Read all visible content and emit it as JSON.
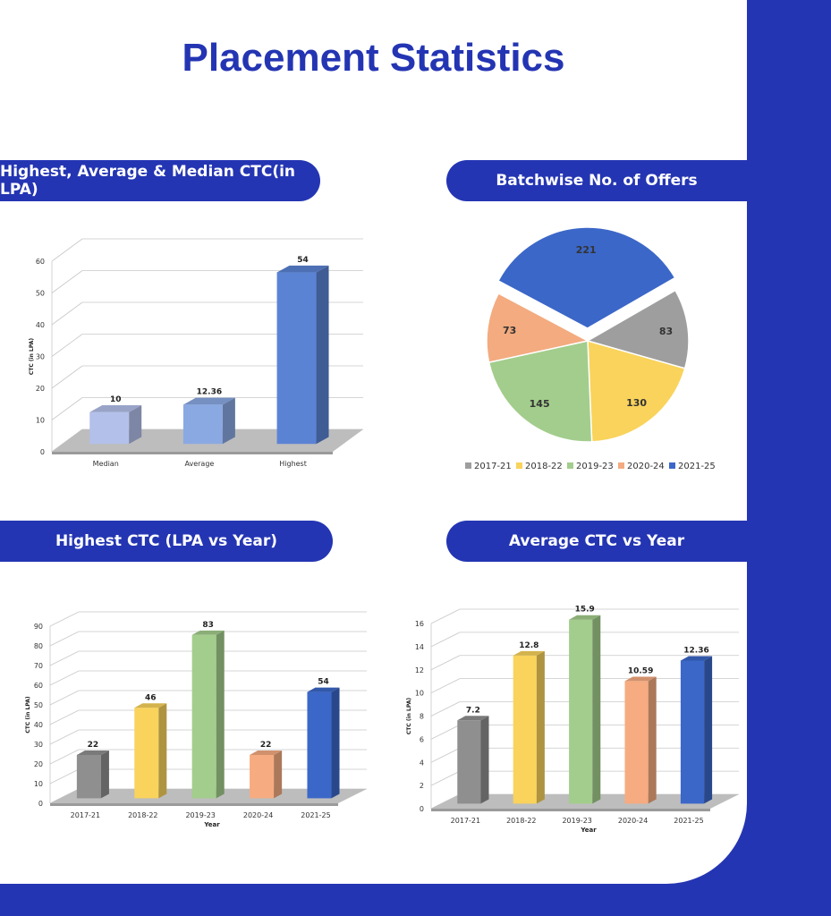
{
  "page": {
    "title": "Placement Statistics"
  },
  "sections": {
    "ctc_summary": "Highest, Average & Median CTC(in LPA)",
    "offers": "Batchwise No. of Offers",
    "highest_ctc": "Highest CTC (LPA vs Year)",
    "average_ctc": "Average CTC vs Year"
  },
  "colors": {
    "brand": "#2435b3",
    "grey": "#8f8f8f",
    "yellow": "#f9d35b",
    "green": "#a3cd8c",
    "orange": "#f3a97e",
    "blue": "#3b67c8"
  },
  "chart_data": [
    {
      "type": "bar",
      "title": "",
      "categories": [
        "Median",
        "Average",
        "Highest"
      ],
      "values": [
        10,
        12.36,
        54
      ],
      "value_labels": [
        "10",
        "12.36",
        "54"
      ],
      "ylabel": "CTC (in LPA)",
      "xlabel": "",
      "ylim": [
        0,
        60
      ],
      "yticks": [
        0,
        10,
        20,
        30,
        40,
        50,
        60
      ],
      "colors": [
        "#b3c0ea",
        "#8aa9e3",
        "#5b83d4"
      ],
      "grid": true,
      "style": "3d"
    },
    {
      "type": "pie",
      "title": "",
      "labels": [
        "2017-21",
        "2018-22",
        "2019-23",
        "2020-24",
        "2021-25"
      ],
      "values": [
        83,
        130,
        145,
        73,
        221
      ],
      "value_labels": [
        "83",
        "130",
        "145",
        "73",
        "221"
      ],
      "colors": [
        "#9e9e9e",
        "#f9d35b",
        "#a3cd8c",
        "#f3ab7f",
        "#3b67c8"
      ],
      "exploded": "2021-25",
      "legend": "bottom"
    },
    {
      "type": "bar",
      "title": "",
      "categories": [
        "2017-21",
        "2018-22",
        "2019-23",
        "2020-24",
        "2021-25"
      ],
      "values": [
        22,
        46,
        83,
        22,
        54
      ],
      "value_labels": [
        "22",
        "46",
        "83",
        "22",
        "54"
      ],
      "xlabel": "Year",
      "ylabel": "CTC (in LPA)",
      "ylim": [
        0,
        90
      ],
      "yticks": [
        0,
        10,
        20,
        30,
        40,
        50,
        60,
        70,
        80,
        90
      ],
      "colors": [
        "#8f8f8f",
        "#f9d35b",
        "#a3cd8c",
        "#f6ab80",
        "#3b67c8"
      ],
      "grid": true,
      "style": "3d"
    },
    {
      "type": "bar",
      "title": "",
      "categories": [
        "2017-21",
        "2018-22",
        "2019-23",
        "2020-24",
        "2021-25"
      ],
      "values": [
        7.2,
        12.8,
        15.9,
        10.59,
        12.36
      ],
      "value_labels": [
        "7.2",
        "12.8",
        "15.9",
        "10.59",
        "12.36"
      ],
      "xlabel": "Year",
      "ylabel": "CTC (in LPA)",
      "ylim": [
        0,
        16
      ],
      "yticks": [
        0,
        2,
        4,
        6,
        8,
        10,
        12,
        14,
        16
      ],
      "colors": [
        "#8f8f8f",
        "#f9d35b",
        "#a3cd8c",
        "#f6ab80",
        "#3b67c8"
      ],
      "grid": true,
      "style": "3d"
    }
  ]
}
